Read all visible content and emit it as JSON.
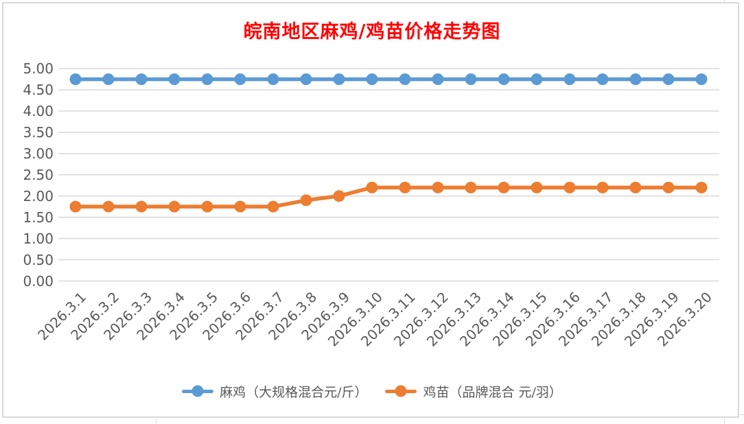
{
  "chart": {
    "title": "皖南地区麻鸡/鸡苗价格走势图",
    "title_color": "#FF0000",
    "background": "#FFFFFF",
    "border_color": "#D9D9D9",
    "gridline_color": "#D9D9D9",
    "axis_label_color": "#595959",
    "legend_text_color": "#595959"
  },
  "chart_data": {
    "type": "line",
    "title": "皖南地区麻鸡/鸡苗价格走势图",
    "xlabel": "",
    "ylabel": "",
    "categories": [
      "2026.3.1",
      "2026.3.2",
      "2026.3.3",
      "2026.3.4",
      "2026.3.5",
      "2026.3.6",
      "2026.3.7",
      "2026.3.8",
      "2026.3.9",
      "2026.3.10",
      "2026.3.11",
      "2026.3.12",
      "2026.3.13",
      "2026.3.14",
      "2026.3.15",
      "2026.3.16",
      "2026.3.17",
      "2026.3.18",
      "2026.3.19",
      "2026.3.20"
    ],
    "series": [
      {
        "name": "麻鸡（大规格混合元/斤）",
        "color": "#5B9BD5",
        "values": [
          4.75,
          4.75,
          4.75,
          4.75,
          4.75,
          4.75,
          4.75,
          4.75,
          4.75,
          4.75,
          4.75,
          4.75,
          4.75,
          4.75,
          4.75,
          4.75,
          4.75,
          4.75,
          4.75,
          4.75
        ]
      },
      {
        "name": "鸡苗（品牌混合 元/羽）",
        "color": "#ED7D31",
        "values": [
          1.75,
          1.75,
          1.75,
          1.75,
          1.75,
          1.75,
          1.75,
          1.9,
          2.0,
          2.2,
          2.2,
          2.2,
          2.2,
          2.2,
          2.2,
          2.2,
          2.2,
          2.2,
          2.2,
          2.2
        ]
      }
    ],
    "ylim": [
      0,
      5
    ],
    "ytick_step": 0.5,
    "yticks": [
      "0.00",
      "0.50",
      "1.00",
      "1.50",
      "2.00",
      "2.50",
      "3.00",
      "3.50",
      "4.00",
      "4.50",
      "5.00"
    ],
    "grid": true,
    "legend_position": "bottom",
    "marker": "circle"
  }
}
